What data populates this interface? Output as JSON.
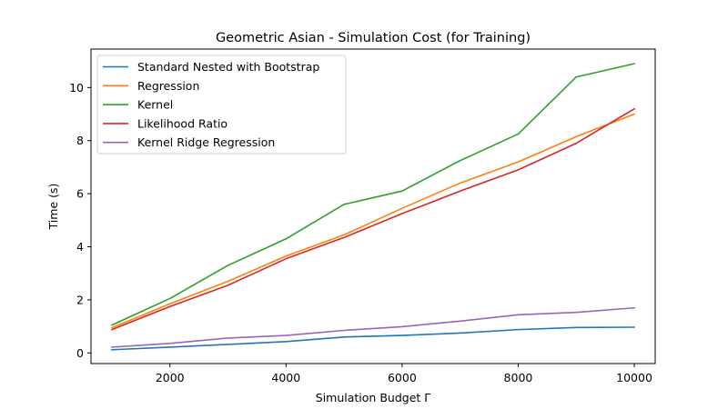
{
  "chart_data": {
    "type": "line",
    "title": "Geometric Asian - Simulation Cost (for Training)",
    "xlabel": "Simulation Budget Γ",
    "ylabel": "Time (s)",
    "xlim": [
      640,
      10360
    ],
    "ylim": [
      -0.4,
      11.45
    ],
    "xticks": [
      2000,
      4000,
      6000,
      8000,
      10000
    ],
    "yticks": [
      0,
      2,
      4,
      6,
      8,
      10
    ],
    "grid": false,
    "legend_position": "upper-left",
    "x": [
      1000,
      2000,
      3000,
      4000,
      5000,
      6000,
      7000,
      8000,
      9000,
      10000
    ],
    "series": [
      {
        "name": "Standard Nested with Bootstrap",
        "color": "#1f77b4",
        "values": [
          0.12,
          0.22,
          0.32,
          0.43,
          0.6,
          0.66,
          0.75,
          0.88,
          0.96,
          0.97
        ]
      },
      {
        "name": "Regression",
        "color": "#ff7f0e",
        "values": [
          0.95,
          1.85,
          2.7,
          3.65,
          4.45,
          5.45,
          6.4,
          7.2,
          8.15,
          9.0
        ]
      },
      {
        "name": "Kernel",
        "color": "#2ca02c",
        "values": [
          1.05,
          2.05,
          3.3,
          4.3,
          5.6,
          6.1,
          7.25,
          8.25,
          10.4,
          10.9
        ]
      },
      {
        "name": "Likelihood Ratio",
        "color": "#d62728",
        "values": [
          0.88,
          1.75,
          2.55,
          3.55,
          4.35,
          5.25,
          6.1,
          6.9,
          7.9,
          9.2
        ]
      },
      {
        "name": "Kernel Ridge Regression",
        "color": "#9467bd",
        "values": [
          0.22,
          0.36,
          0.56,
          0.66,
          0.85,
          0.99,
          1.2,
          1.44,
          1.53,
          1.7
        ]
      }
    ]
  }
}
